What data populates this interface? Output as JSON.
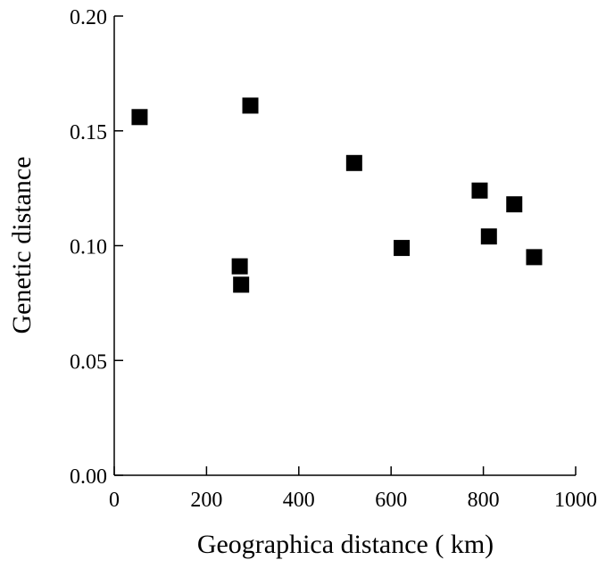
{
  "chart_data": {
    "type": "scatter",
    "xlabel": "Geographica distance ( km)",
    "ylabel": "Genetic distance",
    "xlim": [
      0,
      1000
    ],
    "ylim": [
      0,
      0.2
    ],
    "x_ticks": [
      0,
      200,
      400,
      600,
      800,
      1000
    ],
    "x_tick_labels": [
      "0",
      "200",
      "400",
      "600",
      "800",
      "1000"
    ],
    "y_ticks": [
      0,
      0.05,
      0.1,
      0.15,
      0.2
    ],
    "y_tick_labels": [
      "0.00",
      "0.05",
      "0.10",
      "0.15",
      "0.20"
    ],
    "grid": false,
    "marker": "square",
    "marker_color": "#000000",
    "series": [
      {
        "points": [
          {
            "x": 55,
            "y": 0.156
          },
          {
            "x": 295,
            "y": 0.161
          },
          {
            "x": 272,
            "y": 0.091
          },
          {
            "x": 275,
            "y": 0.083
          },
          {
            "x": 520,
            "y": 0.136
          },
          {
            "x": 623,
            "y": 0.099
          },
          {
            "x": 792,
            "y": 0.124
          },
          {
            "x": 812,
            "y": 0.104
          },
          {
            "x": 867,
            "y": 0.118
          },
          {
            "x": 910,
            "y": 0.095
          }
        ]
      }
    ]
  }
}
